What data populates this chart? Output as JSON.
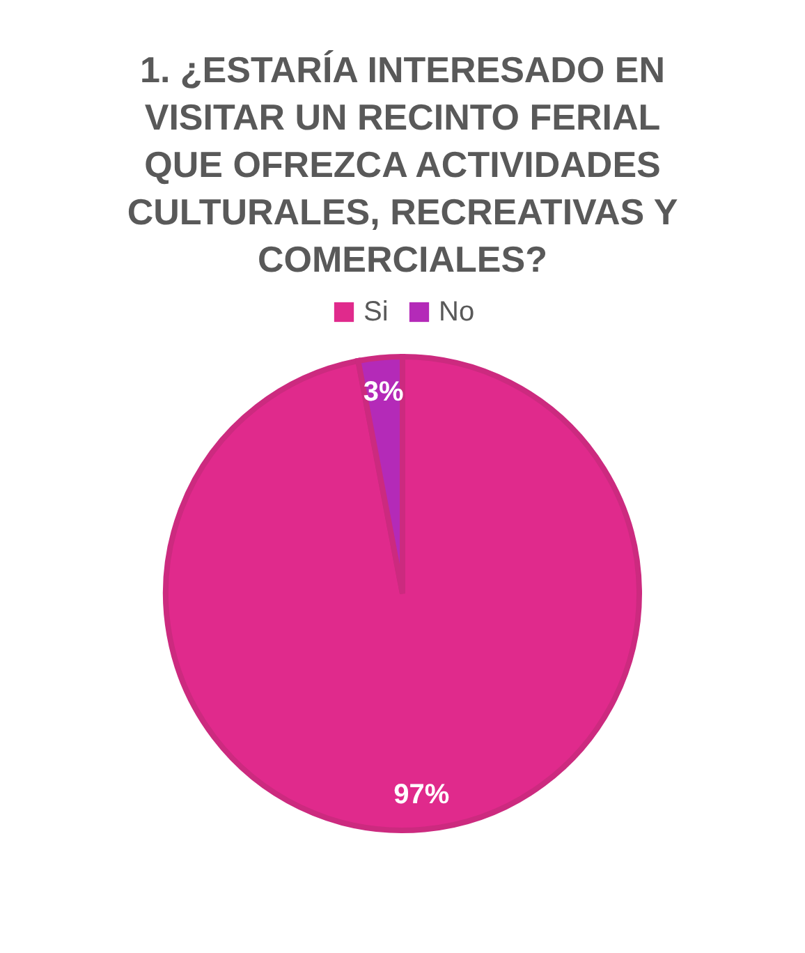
{
  "chart_data": {
    "type": "pie",
    "title": "1. ¿ESTARÍA INTERESADO EN VISITAR UN RECINTO FERIAL QUE OFREZCA ACTIVIDADES CULTURALES, RECREATIVAS Y COMERCIALES?",
    "categories": [
      "Si",
      "No"
    ],
    "values": [
      97,
      3
    ],
    "colors": [
      "#e02a8c",
      "#b42ab8"
    ],
    "value_labels": [
      "97%",
      "3%"
    ],
    "legend": "top"
  }
}
